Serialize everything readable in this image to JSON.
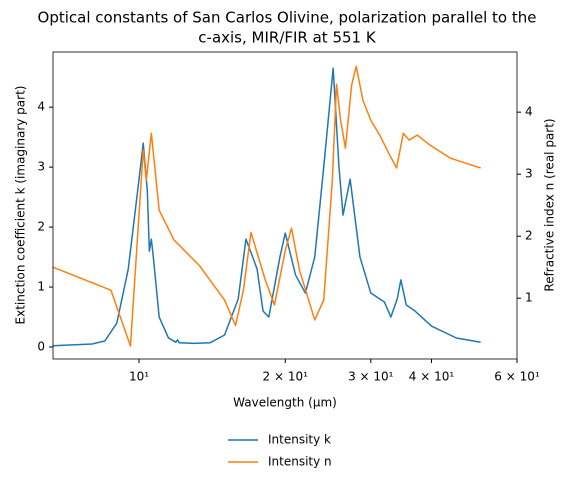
{
  "chart_data": {
    "type": "line",
    "title": [
      "Optical constants of San Carlos Olivine, polarization parallel to the",
      "c-axis, MIR/FIR at 551 K"
    ],
    "x_label": "Wavelength (μm)",
    "y_label": "Extinction coefficient k (imaginary part)",
    "y2_label": "Refractive index n (real part)",
    "x_scale": "log",
    "xlim": [
      6.65,
      60
    ],
    "xticks": [
      {
        "value": 10,
        "label": "10¹"
      },
      {
        "value": 20,
        "label": "2 × 10¹"
      },
      {
        "value": 30,
        "label": "3 × 10¹"
      },
      {
        "value": 40,
        "label": "4 × 10¹"
      },
      {
        "value": 60,
        "label": "6 × 10¹"
      }
    ],
    "ylim": [
      -0.2,
      4.92
    ],
    "yticks": [
      0,
      1,
      2,
      3,
      4
    ],
    "y2lim": [
      0.02,
      4.97
    ],
    "y2ticks": [
      1,
      2,
      3,
      4
    ],
    "legend": "bottom",
    "series": [
      {
        "name": "Intensity k",
        "color": "#1f77b4",
        "axis": "y",
        "x": [
          6.65,
          8,
          8.5,
          9,
          9.5,
          10,
          10.2,
          10.4,
          10.5,
          10.6,
          10.7,
          11,
          11.5,
          11.9,
          12,
          12.1,
          13,
          14,
          15,
          16,
          16.6,
          17.5,
          18,
          18.5,
          19.5,
          20,
          21,
          22,
          23,
          24,
          25.1,
          25.8,
          26.3,
          27.2,
          28.5,
          30,
          32,
          33,
          34,
          34.6,
          35.5,
          37,
          40,
          45,
          50.5
        ],
        "values": [
          0.02,
          0.05,
          0.1,
          0.4,
          1.3,
          2.8,
          3.4,
          2.6,
          1.6,
          1.8,
          1.5,
          0.5,
          0.15,
          0.08,
          0.12,
          0.07,
          0.06,
          0.07,
          0.2,
          0.8,
          1.8,
          1.3,
          0.6,
          0.5,
          1.5,
          1.9,
          1.2,
          0.9,
          1.5,
          3.0,
          4.65,
          3.0,
          2.2,
          2.8,
          1.5,
          0.9,
          0.75,
          0.5,
          0.8,
          1.12,
          0.7,
          0.6,
          0.35,
          0.15,
          0.08
        ]
      },
      {
        "name": "Intensity n",
        "color": "#ff7f0e",
        "axis": "y2",
        "x": [
          6.65,
          8.75,
          9.6,
          10.2,
          10.35,
          10.6,
          11,
          11.8,
          13.3,
          15,
          15.8,
          16.4,
          17,
          18.2,
          19,
          20,
          20.6,
          21.4,
          23,
          24,
          25,
          25.5,
          26,
          26.6,
          27.4,
          28,
          28.9,
          30,
          31.3,
          32.8,
          33.9,
          35,
          36,
          37.4,
          39.7,
          43.7,
          50.5
        ],
        "values": [
          1.5,
          1.13,
          0.23,
          3.39,
          2.9,
          3.66,
          2.42,
          1.94,
          1.53,
          0.97,
          0.56,
          1.13,
          2.06,
          1.29,
          0.89,
          1.77,
          2.13,
          1.45,
          0.65,
          0.97,
          2.9,
          4.45,
          3.87,
          3.42,
          4.44,
          4.74,
          4.19,
          3.87,
          3.63,
          3.31,
          3.1,
          3.66,
          3.55,
          3.63,
          3.47,
          3.26,
          3.1
        ]
      }
    ]
  }
}
